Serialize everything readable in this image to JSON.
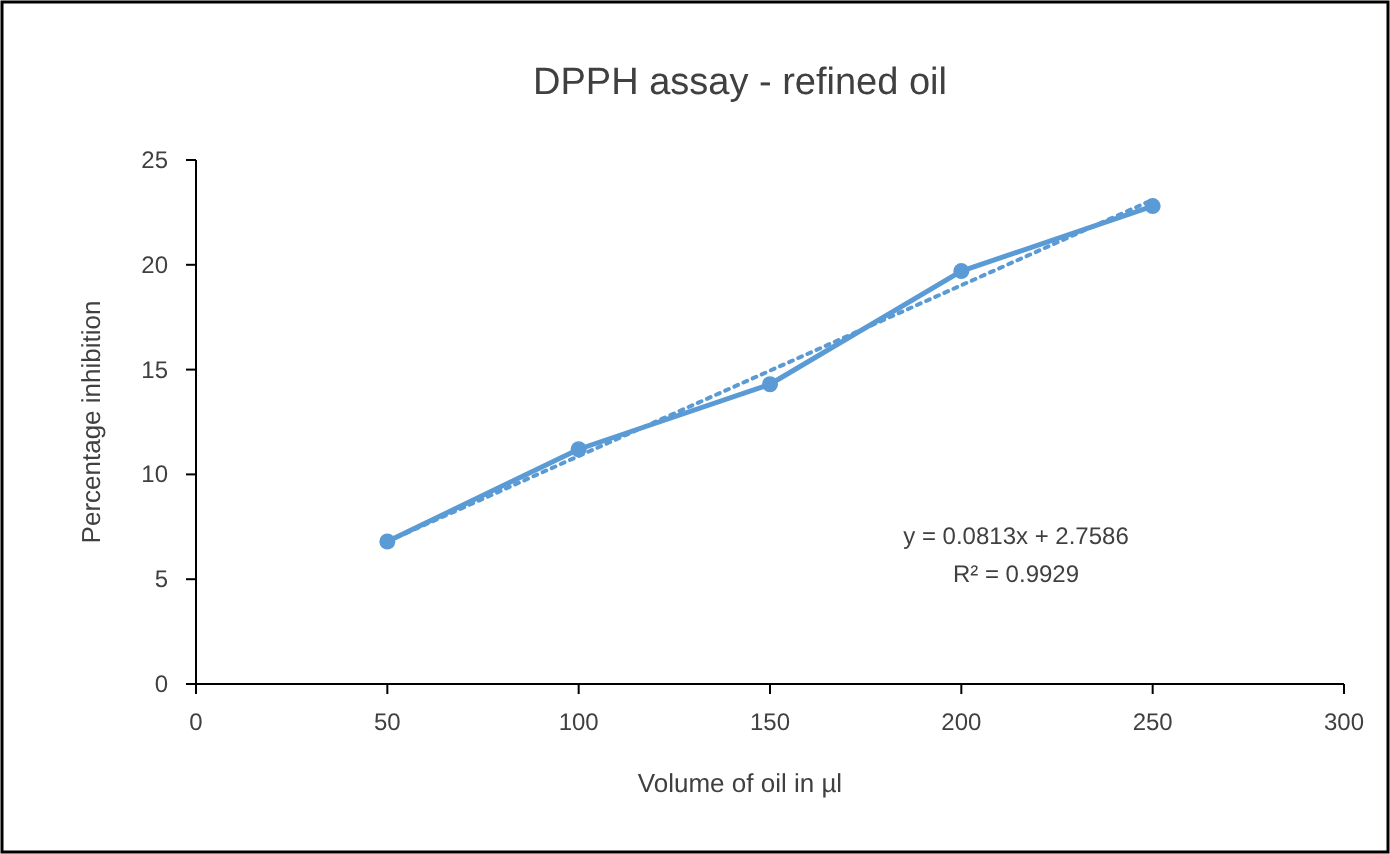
{
  "chart_data": {
    "type": "line",
    "title": "DPPH assay - refined oil",
    "xlabel": "Volume of oil in µl",
    "ylabel": "Percentage inhibition",
    "xlim": [
      0,
      300
    ],
    "xticks": [
      0,
      50,
      100,
      150,
      200,
      250,
      300
    ],
    "ylim": [
      0,
      25
    ],
    "yticks": [
      0,
      5,
      10,
      15,
      20,
      25
    ],
    "grid": false,
    "series": [
      {
        "color": "#5b9bd5",
        "x": [
          50,
          100,
          150,
          200,
          250
        ],
        "values": [
          6.8,
          11.2,
          14.3,
          19.7,
          22.8
        ],
        "marker": "circle",
        "line_style": "solid"
      },
      {
        "type": "line",
        "color": "#5b9bd5",
        "x": [
          50,
          250
        ],
        "values": [
          6.8,
          23.1
        ],
        "marker": "none",
        "line_style": "dotted"
      }
    ],
    "annotations": [
      "y = 0.0813x + 2.7586",
      "R² = 0.9929"
    ]
  }
}
